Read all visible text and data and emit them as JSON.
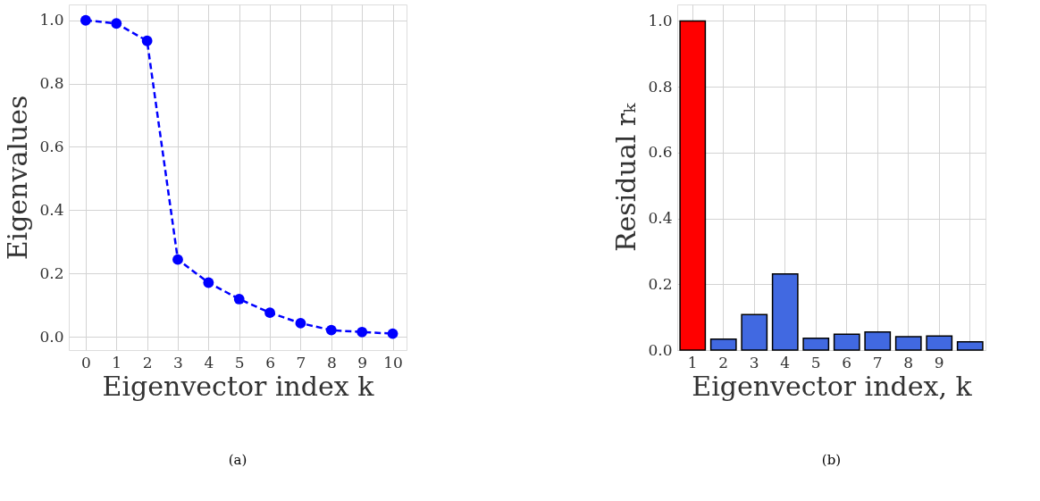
{
  "chart_data": [
    {
      "type": "line",
      "xlabel": "Eigenvector index k",
      "ylabel": "Eigenvalues",
      "annotations": [
        "(a)"
      ],
      "x": [
        0,
        1,
        2,
        3,
        4,
        5,
        6,
        7,
        8,
        9,
        10
      ],
      "values": [
        1.0,
        0.99,
        0.935,
        0.244,
        0.171,
        0.119,
        0.076,
        0.043,
        0.021,
        0.015,
        0.01
      ],
      "color": "#0000ff",
      "marker": "circle",
      "line_style": "dashed",
      "xlim": [
        -0.55,
        10.45
      ],
      "xticks": [
        0,
        1,
        2,
        3,
        4,
        5,
        6,
        7,
        8,
        9,
        10
      ],
      "ylim": [
        -0.042,
        1.05
      ],
      "yticks": [
        {
          "value": 0,
          "label": "0.0"
        },
        {
          "value": 0.2,
          "label": "0.2"
        },
        {
          "value": 0.4,
          "label": "0.4"
        },
        {
          "value": 0.6,
          "label": "0.6"
        },
        {
          "value": 0.8,
          "label": "0.8"
        },
        {
          "value": 1,
          "label": "1.0"
        }
      ],
      "grid": true
    },
    {
      "type": "bar",
      "xlabel": "Eigenvector index, k",
      "ylabel": "Residual rₖ",
      "annotations": [
        "(b)"
      ],
      "categories": [
        "1",
        "2",
        "3",
        "4",
        "5",
        "6",
        "7",
        "8",
        "9",
        null
      ],
      "values": [
        1.0,
        0.033,
        0.108,
        0.231,
        0.036,
        0.048,
        0.055,
        0.041,
        0.043,
        0.025
      ],
      "colors": [
        "#ff0000",
        "#4169e1",
        "#4169e1",
        "#4169e1",
        "#4169e1",
        "#4169e1",
        "#4169e1",
        "#4169e1",
        "#4169e1",
        "#4169e1"
      ],
      "ylim": [
        0,
        1.05
      ],
      "yticks": [
        {
          "value": 0,
          "label": "0.0"
        },
        {
          "value": 0.2,
          "label": "0.2"
        },
        {
          "value": 0.4,
          "label": "0.4"
        },
        {
          "value": 0.6,
          "label": "0.6"
        },
        {
          "value": 0.8,
          "label": "0.8"
        },
        {
          "value": 1,
          "label": "1.0"
        }
      ],
      "grid": true
    }
  ]
}
